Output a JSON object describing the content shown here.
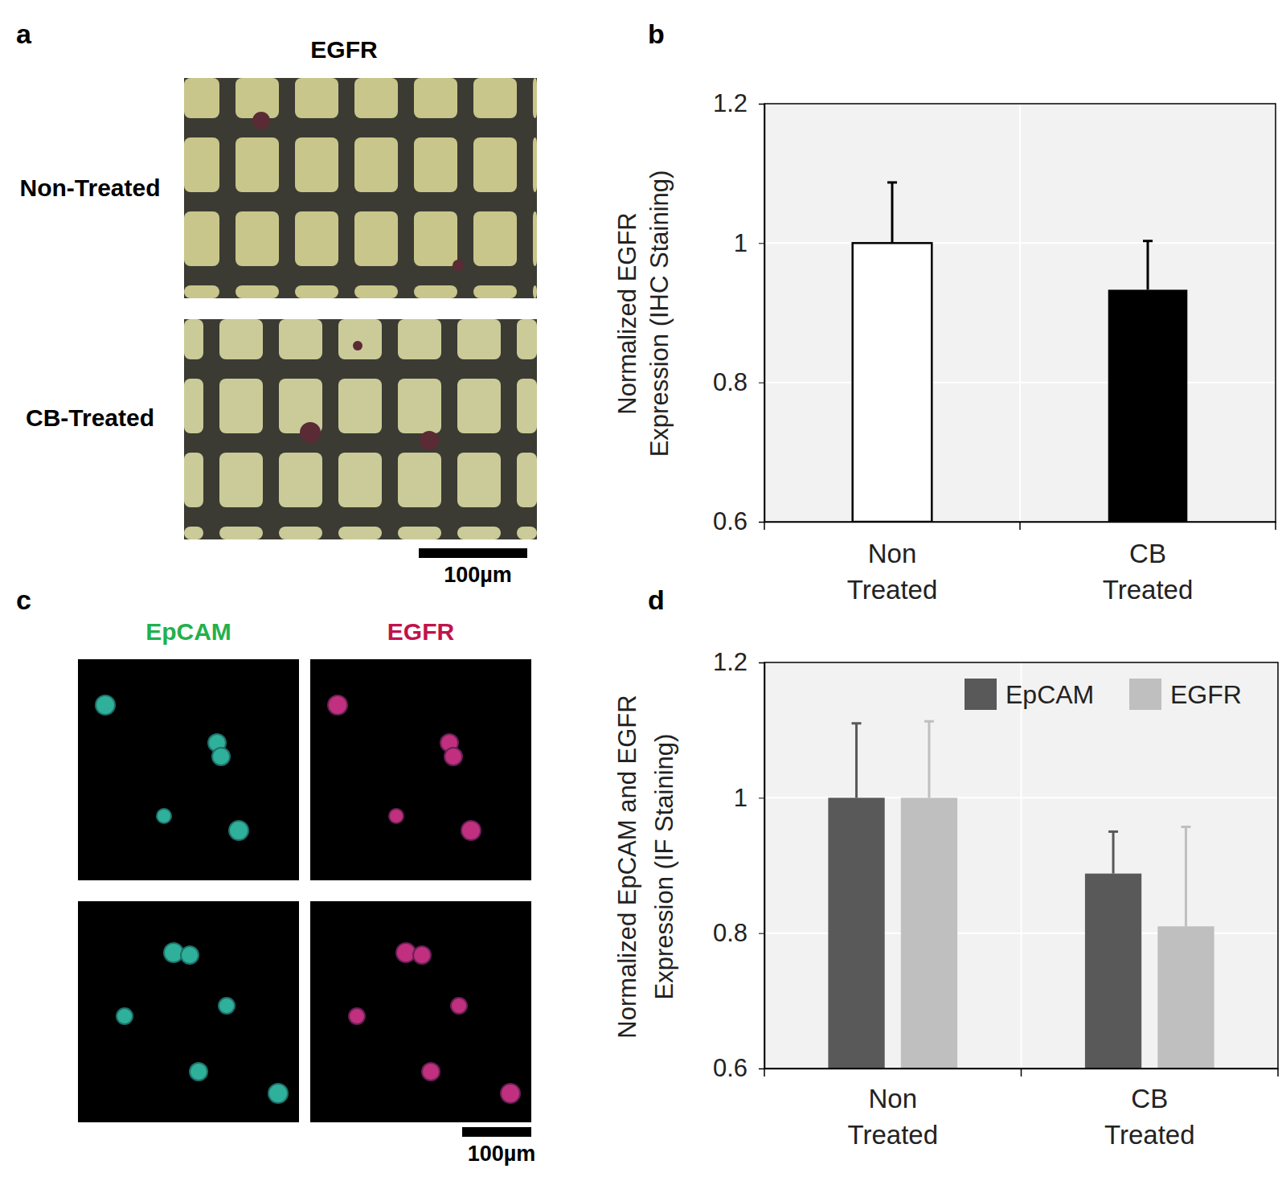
{
  "chart_data": [
    {
      "type": "bar",
      "panel_label": "b",
      "categories": [
        "Non Treated",
        "CB Treated"
      ],
      "values": [
        1,
        0.933
      ],
      "errors": [
        0.087,
        0.07
      ],
      "colors": [
        "#ffffff",
        "#000000"
      ],
      "ylabel": [
        "Normalized EGFR",
        "Expression (IHC Staining)"
      ],
      "ylim": [
        0.6,
        1.2
      ],
      "yticks": [
        0.6,
        0.8,
        1,
        1.2
      ],
      "grid": true
    },
    {
      "type": "bar",
      "panel_label": "d",
      "categories": [
        "Non Treated",
        "CB Treated"
      ],
      "series": [
        {
          "name": "EpCAM",
          "color": "#595959",
          "values": [
            1,
            0.888
          ],
          "errors": [
            0.11,
            0.062
          ]
        },
        {
          "name": "EGFR",
          "color": "#bfbfbf",
          "values": [
            1,
            0.81
          ],
          "errors": [
            0.113,
            0.147
          ]
        }
      ],
      "ylabel": [
        "Normalized EpCAM and EGFR",
        "Expression (IF Staining)"
      ],
      "ylim": [
        0.6,
        1.2
      ],
      "yticks": [
        0.6,
        0.8,
        1,
        1.2
      ],
      "grid": true,
      "legend": "upper right"
    }
  ],
  "images": [
    {
      "panel_label": "a",
      "title": "EGFR",
      "rows": [
        "Non-Treated",
        "CB-Treated"
      ],
      "scale_bar": "100µm"
    },
    {
      "panel_label": "c",
      "columns": [
        {
          "label": "EpCAM",
          "color": "#22b14c"
        },
        {
          "label": "EGFR",
          "color": "#c0134c"
        }
      ],
      "scale_bar": "100µm"
    }
  ]
}
